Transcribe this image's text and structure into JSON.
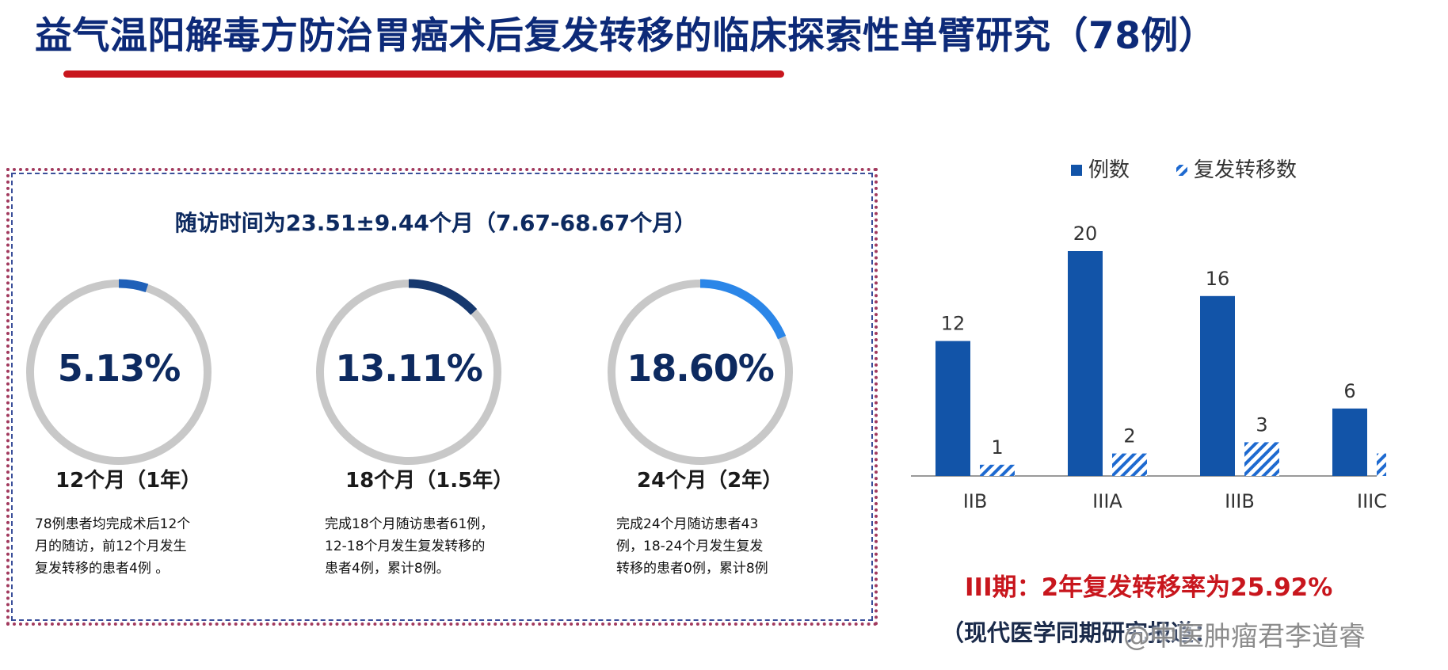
{
  "title": "益气温阳解毒方防治胃癌术后复发转移的临床探索性单臂研究（78例）",
  "followup": "随访时间为23.51±9.44个月（7.67-68.67个月）",
  "rings": [
    {
      "percent_label": "5.13%",
      "value": 5.13,
      "period": "12个月（1年）",
      "color": "#1f60b8",
      "desc": [
        "78例患者均完成术后12个",
        "月的随访，前12个月发生",
        "复发转移的患者4例 。"
      ]
    },
    {
      "percent_label": "13.11%",
      "value": 13.11,
      "period": "18个月（1.5年）",
      "color": "#16386e",
      "desc": [
        "完成18个月随访患者61例，",
        "12-18个月发生复发转移的",
        "患者4例，累计8例。"
      ]
    },
    {
      "percent_label": "18.60%",
      "value": 18.6,
      "period": "24个月（2年）",
      "color": "#2b86e8",
      "desc": [
        "完成24个月随访患者43",
        "例，18-24个月发生复发",
        "转移的患者0例，累计8例"
      ]
    }
  ],
  "colors": {
    "primary": "#1254a8",
    "accent_red": "#c8161d",
    "title_blue": "#0d2a78",
    "ring_track": "#c8c8c8"
  },
  "chart_data": {
    "type": "bar",
    "categories": [
      "IIB",
      "IIIA",
      "IIIB",
      "IIIC"
    ],
    "series": [
      {
        "name": "例数",
        "values": [
          12,
          20,
          16,
          6
        ],
        "style": "solid",
        "color": "#1254a8"
      },
      {
        "name": "复发转移数",
        "values": [
          1,
          2,
          3,
          2
        ],
        "style": "hatched",
        "color": "#1e6ad0"
      }
    ],
    "ylim": [
      0,
      20
    ],
    "grid": false,
    "legend_position": "top",
    "data_labels": true
  },
  "conclusion": "III期：2年复发转移率为25.92%",
  "source": "（现代医学同期研究报道：",
  "watermark": "@中医肿瘤君李道睿"
}
